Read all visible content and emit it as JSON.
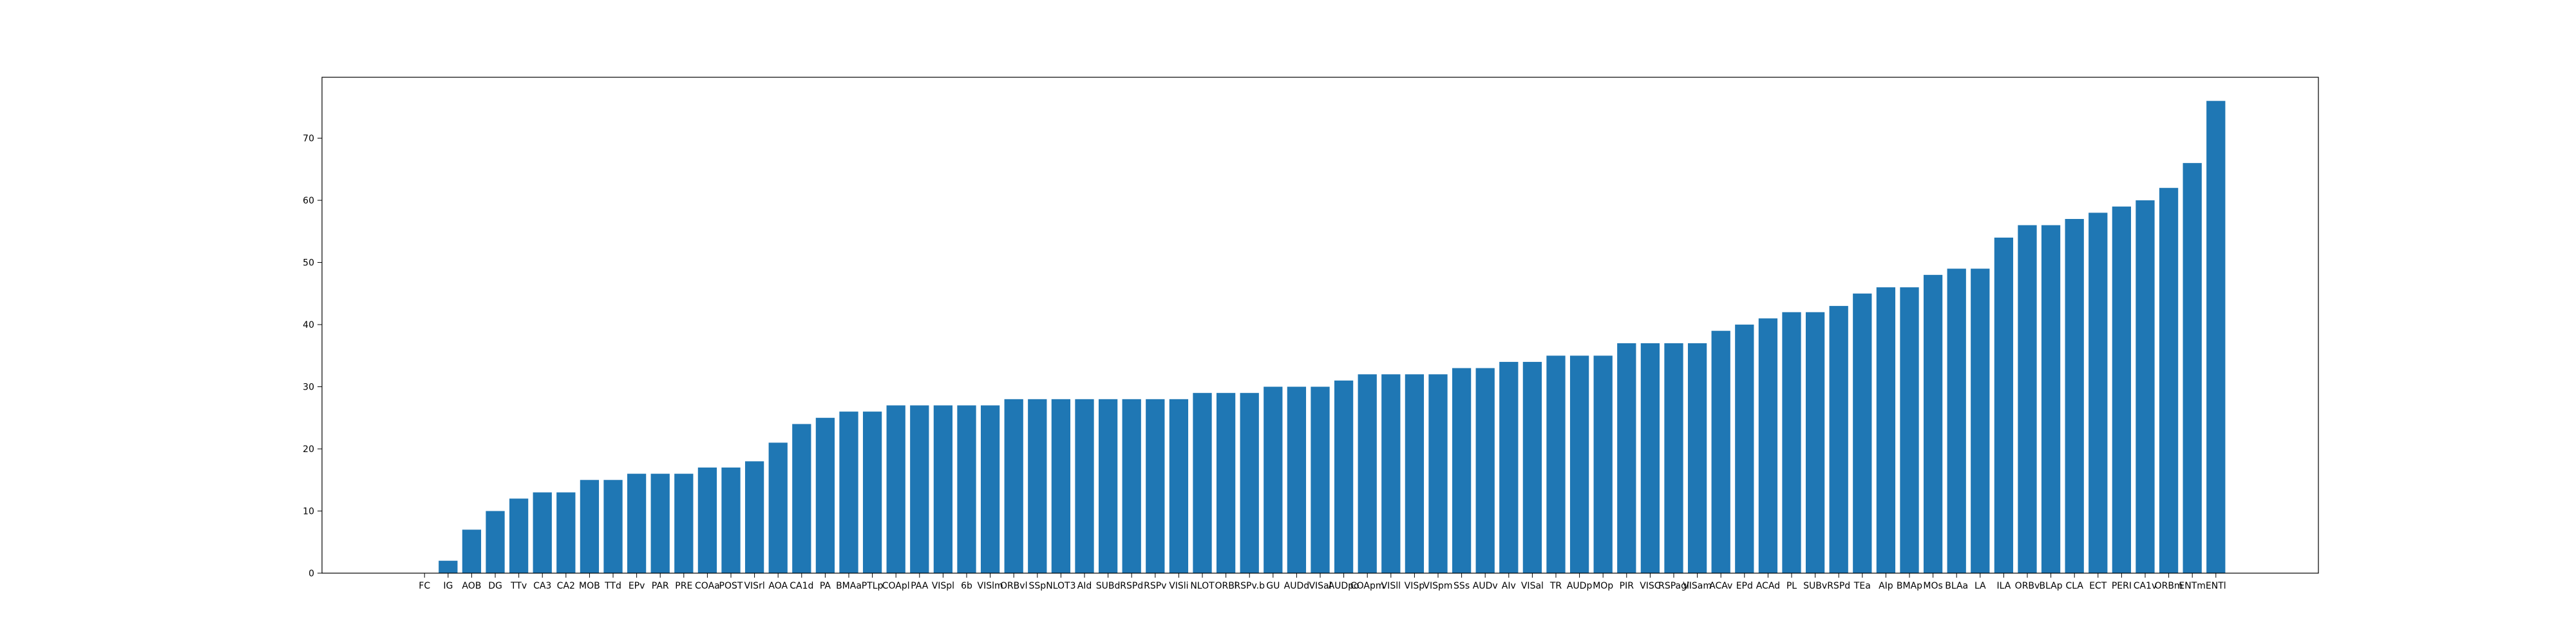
{
  "chart_data": {
    "type": "bar",
    "title": "",
    "xlabel": "",
    "ylabel": "",
    "ylim": [
      0,
      79.8
    ],
    "yticks": [
      0,
      10,
      20,
      30,
      40,
      50,
      60,
      70
    ],
    "grid": false,
    "bar_color": "#1f77b4",
    "categories": [
      "FC",
      "IG",
      "AOB",
      "DG",
      "TTv",
      "CA3",
      "CA2",
      "MOB",
      "TTd",
      "EPv",
      "PAR",
      "PRE",
      "COAa",
      "POST",
      "VISrl",
      "AOA",
      "CA1d",
      "PA",
      "BMAa",
      "PTLp",
      "COApl",
      "PAA",
      "VISpl",
      "6b",
      "VISlm",
      "ORBvl",
      "SSp",
      "NLOT3",
      "AId",
      "SUBd",
      "RSPd",
      "RSPv",
      "VISli",
      "NLOT",
      "ORBl",
      "RSPv.b",
      "GU",
      "AUDd",
      "VISal",
      "AUDpo",
      "COApm",
      "VISll",
      "VISp",
      "VISpm",
      "SSs",
      "AUDv",
      "AIv",
      "VISal",
      "TR",
      "AUDp",
      "MOp",
      "PIR",
      "VISC",
      "RSPagl",
      "VISam",
      "ACAv",
      "EPd",
      "ACAd",
      "PL",
      "SUBv",
      "RSPd",
      "TEa",
      "AIp",
      "BMAp",
      "MOs",
      "BLAa",
      "LA",
      "ILA",
      "ORBv",
      "BLAp",
      "CLA",
      "ECT",
      "PERI",
      "CA1v",
      "ORBm",
      "ENTm",
      "ENTl"
    ],
    "values": [
      0,
      2,
      7,
      10,
      12,
      13,
      13,
      15,
      15,
      16,
      16,
      16,
      17,
      17,
      18,
      21,
      24,
      25,
      26,
      26,
      27,
      27,
      27,
      27,
      27,
      28,
      28,
      28,
      28,
      28,
      28,
      28,
      28,
      29,
      29,
      29,
      30,
      30,
      30,
      31,
      32,
      32,
      32,
      32,
      33,
      33,
      34,
      34,
      35,
      35,
      35,
      37,
      37,
      37,
      37,
      39,
      40,
      41,
      42,
      42,
      43,
      45,
      46,
      46,
      48,
      49,
      49,
      54,
      56,
      56,
      57,
      58,
      59,
      60,
      62,
      66,
      76
    ]
  }
}
